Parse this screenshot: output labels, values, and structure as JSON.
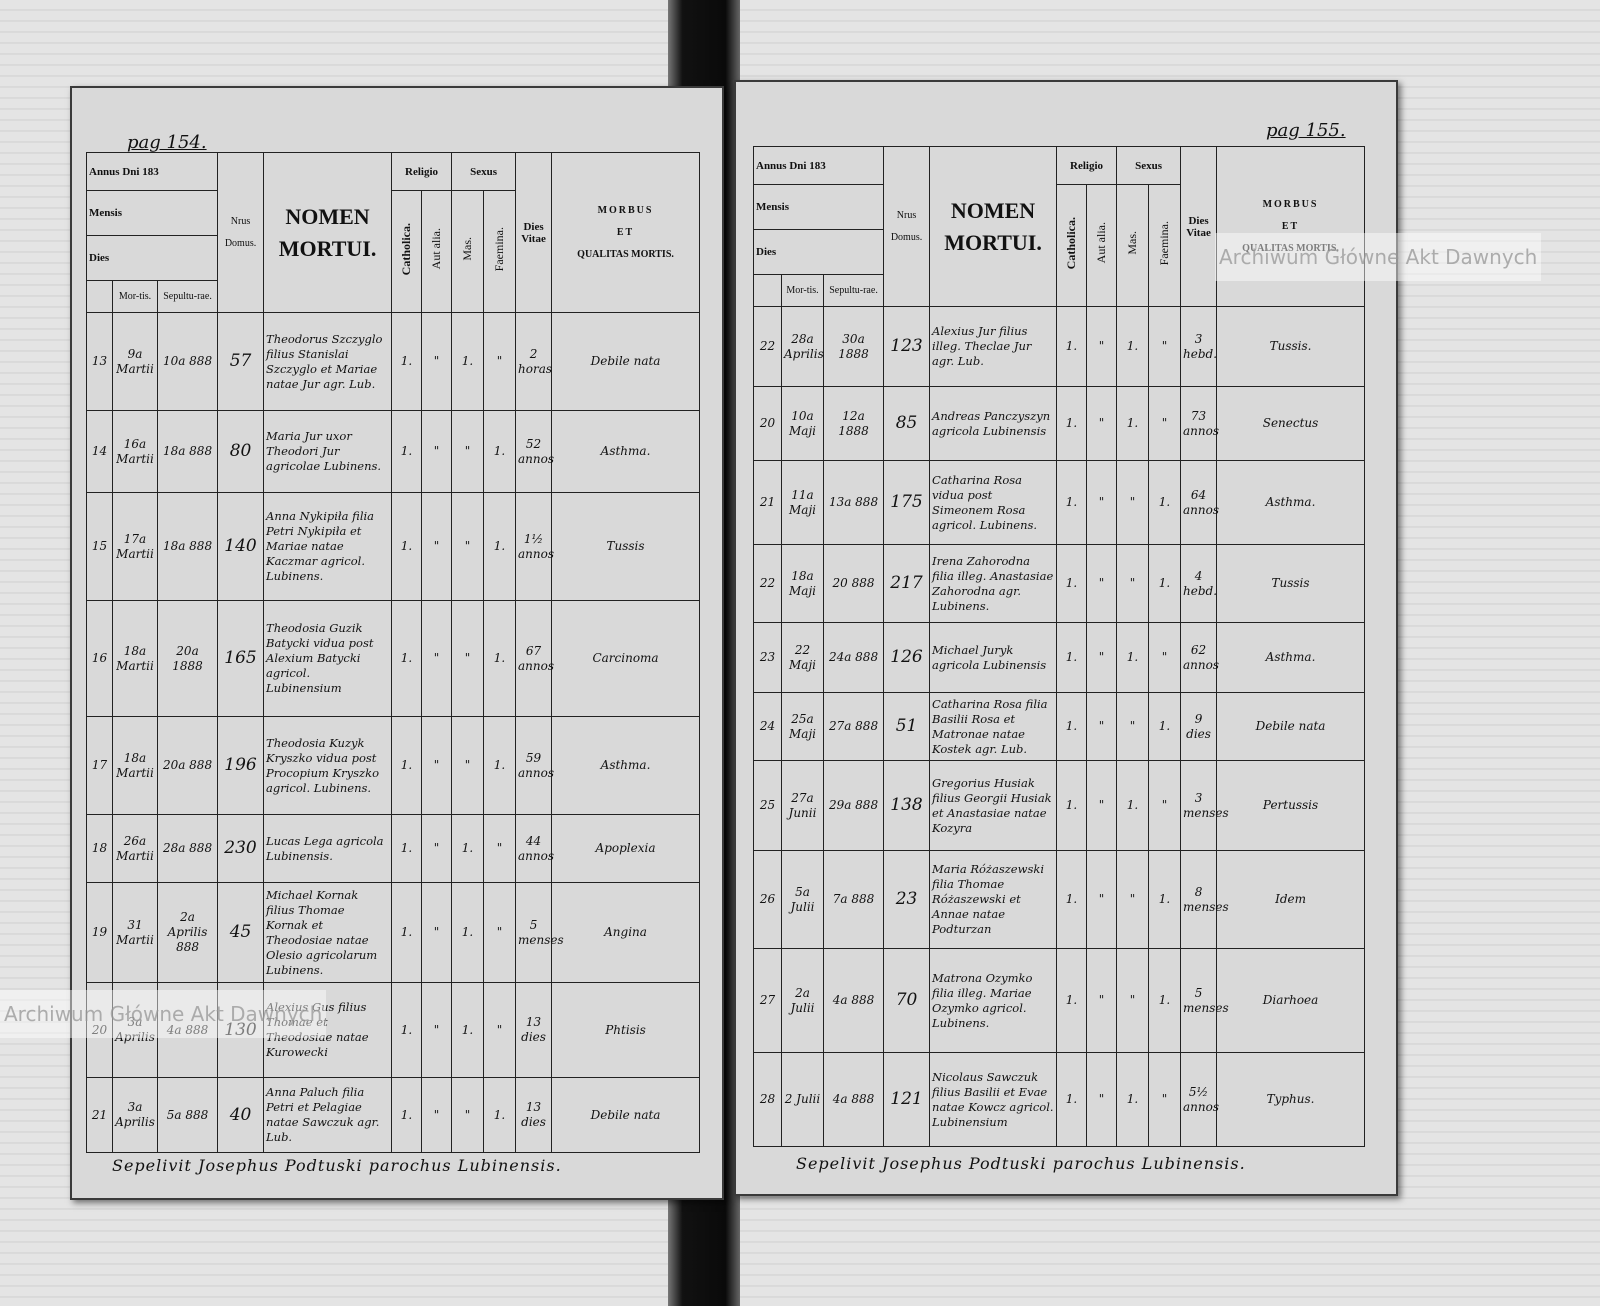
{
  "watermark": "Archiwum Główne Akt Dawnych",
  "column_headers": {
    "annus": "Annus Dni 183",
    "mensis": "Mensis",
    "dies": "Dies",
    "mortis": "Mor-tis.",
    "sepulturae": "Sepultu-rae.",
    "domus_nrus": "Nrus",
    "domus": "Domus.",
    "nomen": "NOMEN",
    "mortui": "MORTUI.",
    "religio": "Religio",
    "catholica": "Catholica.",
    "aut_alia": "Aut alia.",
    "sexus": "Sexus",
    "mas": "Mas.",
    "faemina": "Faemina.",
    "dies_vitae": "Dies Vitae",
    "morbus": "MORBUS",
    "et": "ET",
    "qualitas": "QUALITAS MORTIS."
  },
  "pages": [
    {
      "page_label": "pag 154.",
      "table": {
        "rows": [
          [
            "13",
            "9a Martii",
            "10a 888",
            "57",
            "Theodorus Szczyglo filius Stanislai Szczyglo et Mariae natae Jur agr. Lub.",
            "1.",
            "\"",
            "1.",
            "\"",
            "2 horas",
            "Debile nata"
          ],
          [
            "14",
            "16a Martii",
            "18a 888",
            "80",
            "Maria Jur uxor Theodori Jur agricolae Lubinens.",
            "1.",
            "\"",
            "\"",
            "1.",
            "52 annos",
            "Asthma."
          ],
          [
            "15",
            "17a Martii",
            "18a 888",
            "140",
            "Anna Nykipiła filia Petri Nykipiła et Mariae natae Kaczmar agricol. Lubinens.",
            "1.",
            "\"",
            "\"",
            "1.",
            "1½ annos",
            "Tussis"
          ],
          [
            "16",
            "18a Martii",
            "20a 1888",
            "165",
            "Theodosia Guzik Batycki vidua post Alexium Batycki agricol. Lubinensium",
            "1.",
            "\"",
            "\"",
            "1.",
            "67 annos",
            "Carcinoma"
          ],
          [
            "17",
            "18a Martii",
            "20a 888",
            "196",
            "Theodosia Kuzyk Kryszko vidua post Procopium Kryszko agricol. Lubinens.",
            "1.",
            "\"",
            "\"",
            "1.",
            "59 annos",
            "Asthma."
          ],
          [
            "18",
            "26a Martii",
            "28a 888",
            "230",
            "Lucas Lega agricola Lubinensis.",
            "1.",
            "\"",
            "1.",
            "\"",
            "44 annos",
            "Apoplexia"
          ],
          [
            "19",
            "31 Martii",
            "2a Aprilis 888",
            "45",
            "Michael Kornak filius Thomae Kornak et Theodosiae natae Olesio agricolarum Lubinens.",
            "1.",
            "\"",
            "1.",
            "\"",
            "5 menses",
            "Angina"
          ],
          [
            "20",
            "3a Aprilis",
            "4a 888",
            "130",
            "Alexius Gus filius Thomae et Theodosiae natae Kurowecki",
            "1.",
            "\"",
            "1.",
            "\"",
            "13 dies",
            "Phtisis"
          ],
          [
            "21",
            "3a Aprilis",
            "5a 888",
            "40",
            "Anna Paluch filia Petri et Pelagiae natae Sawczuk agr. Lub.",
            "1.",
            "\"",
            "\"",
            "1.",
            "13 dies",
            "Debile nata"
          ]
        ]
      },
      "footer": "Sepelivit Josephus Podtuski parochus Lubinensis."
    },
    {
      "page_label": "pag 155.",
      "table": {
        "rows": [
          [
            "22",
            "28a Aprilis",
            "30a 1888",
            "123",
            "Alexius Jur filius illeg. Theclae Jur agr. Lub.",
            "1.",
            "\"",
            "1.",
            "\"",
            "3 hebd.",
            "Tussis."
          ],
          [
            "20",
            "10a Maji",
            "12a 1888",
            "85",
            "Andreas Panczyszyn agricola Lubinensis",
            "1.",
            "\"",
            "1.",
            "\"",
            "73 annos",
            "Senectus"
          ],
          [
            "21",
            "11a Maji",
            "13a 888",
            "175",
            "Catharina Rosa vidua post Simeonem Rosa agricol. Lubinens.",
            "1.",
            "\"",
            "\"",
            "1.",
            "64 annos",
            "Asthma."
          ],
          [
            "22",
            "18a Maji",
            "20 888",
            "217",
            "Irena Zahorodna filia illeg. Anastasiae Zahorodna agr. Lubinens.",
            "1.",
            "\"",
            "\"",
            "1.",
            "4 hebd.",
            "Tussis"
          ],
          [
            "23",
            "22 Maji",
            "24a 888",
            "126",
            "Michael Juryk agricola Lubinensis",
            "1.",
            "\"",
            "1.",
            "\"",
            "62 annos",
            "Asthma."
          ],
          [
            "24",
            "25a Maji",
            "27a 888",
            "51",
            "Catharina Rosa filia Basilii Rosa et Matronae natae Kostek agr. Lub.",
            "1.",
            "\"",
            "\"",
            "1.",
            "9 dies",
            "Debile nata"
          ],
          [
            "25",
            "27a Junii",
            "29a 888",
            "138",
            "Gregorius Husiak filius Georgii Husiak et Anastasiae natae Kozyra",
            "1.",
            "\"",
            "1.",
            "\"",
            "3 menses",
            "Pertussis"
          ],
          [
            "26",
            "5a Julii",
            "7a 888",
            "23",
            "Maria Różaszewski filia Thomae Różaszewski et Annae natae Podturzan",
            "1.",
            "\"",
            "\"",
            "1.",
            "8 menses",
            "Idem"
          ],
          [
            "27",
            "2a Julii",
            "4a 888",
            "70",
            "Matrona Ozymko filia illeg. Mariae Ozymko agricol. Lubinens.",
            "1.",
            "\"",
            "\"",
            "1.",
            "5 menses",
            "Diarhoea"
          ],
          [
            "28",
            "2 Julii",
            "4a 888",
            "121",
            "Nicolaus Sawczuk filius Basilii et Evae natae Kowcz agricol. Lubinensium",
            "1.",
            "\"",
            "1.",
            "\"",
            "5½ annos",
            "Typhus."
          ]
        ]
      },
      "footer": "Sepelivit Josephus Podtuski parochus Lubinensis."
    }
  ]
}
